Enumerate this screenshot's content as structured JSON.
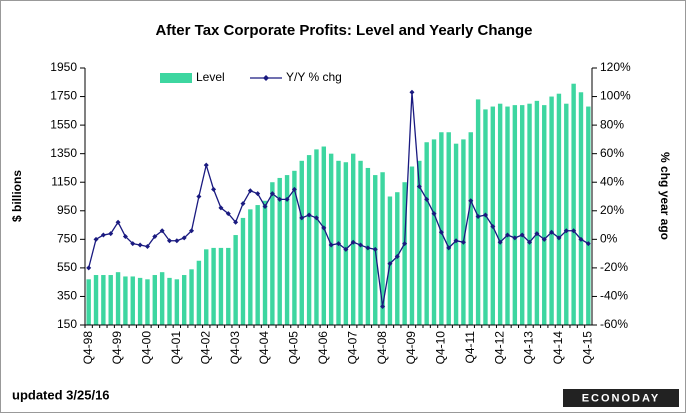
{
  "chart_data": {
    "type": "bar_line",
    "title": "After Tax Corporate Profits:  Level and Yearly Change",
    "y_label": "$ billions",
    "y2_label": "% chg year ago",
    "note": "updated 3/25/16",
    "logo": "ECONODAY",
    "legend": "top",
    "categories": [
      "Q4-98",
      null,
      null,
      null,
      "Q4-99",
      null,
      null,
      null,
      "Q4-00",
      null,
      null,
      null,
      "Q4-01",
      null,
      null,
      null,
      "Q4-02",
      null,
      null,
      null,
      "Q4-03",
      null,
      null,
      null,
      "Q4-04",
      null,
      null,
      null,
      "Q4-05",
      null,
      null,
      null,
      "Q4-06",
      null,
      null,
      null,
      "Q4-07",
      null,
      null,
      null,
      "Q4-08",
      null,
      null,
      null,
      "Q4-09",
      null,
      null,
      null,
      "Q4-10",
      null,
      null,
      null,
      "Q4-11",
      null,
      null,
      null,
      "Q4-12",
      null,
      null,
      null,
      "Q4-13",
      null,
      null,
      null,
      "Q4-14",
      null,
      null,
      null,
      "Q4-15"
    ],
    "series": [
      {
        "name": "Level",
        "color": "#3dd6a0",
        "axis": "y",
        "values": [
          470,
          500,
          500,
          500,
          520,
          490,
          490,
          480,
          470,
          500,
          520,
          480,
          470,
          500,
          540,
          600,
          680,
          690,
          690,
          690,
          780,
          900,
          960,
          990,
          1020,
          1150,
          1180,
          1200,
          1230,
          1300,
          1340,
          1380,
          1400,
          1350,
          1300,
          1290,
          1350,
          1300,
          1250,
          1200,
          1220,
          1050,
          1080,
          1150,
          1260,
          1300,
          1430,
          1450,
          1500,
          1500,
          1420,
          1450,
          1500,
          1730,
          1660,
          1680,
          1700,
          1680,
          1690,
          1690,
          1700,
          1720,
          1690,
          1750,
          1770,
          1700,
          1840,
          1780,
          1680
        ]
      },
      {
        "name": "Y/Y % chg",
        "color": "#1a1a80",
        "axis": "y2",
        "values": [
          -20,
          0,
          3,
          4,
          12,
          2,
          -3,
          -4,
          -5,
          2,
          6,
          -1,
          -1,
          1,
          6,
          30,
          52,
          35,
          22,
          18,
          12,
          25,
          34,
          32,
          23,
          32,
          28,
          28,
          35,
          15,
          17,
          15,
          8,
          -4,
          -3,
          -7,
          -2,
          -4,
          -6,
          -7,
          -47,
          -17,
          -12,
          -3,
          103,
          37,
          28,
          18,
          5,
          -6,
          -1,
          -2,
          27,
          16,
          17,
          9,
          -2,
          3,
          1,
          3,
          -2,
          4,
          0,
          5,
          1,
          6,
          6,
          0,
          -3
        ]
      }
    ],
    "ylim": [
      150,
      1950
    ],
    "yticks": [
      150,
      350,
      550,
      750,
      950,
      1150,
      1350,
      1550,
      1750,
      1950
    ],
    "y2lim": [
      -60,
      120
    ],
    "y2ticks": [
      {
        "value": -60,
        "label": "-60%"
      },
      {
        "value": -40,
        "label": "-40%"
      },
      {
        "value": -20,
        "label": "-20%"
      },
      {
        "value": 0,
        "label": "0%"
      },
      {
        "value": 20,
        "label": "20%"
      },
      {
        "value": 40,
        "label": "40%"
      },
      {
        "value": 60,
        "label": "60%"
      },
      {
        "value": 80,
        "label": "80%"
      },
      {
        "value": 100,
        "label": "100%"
      },
      {
        "value": 120,
        "label": "120%"
      }
    ]
  }
}
